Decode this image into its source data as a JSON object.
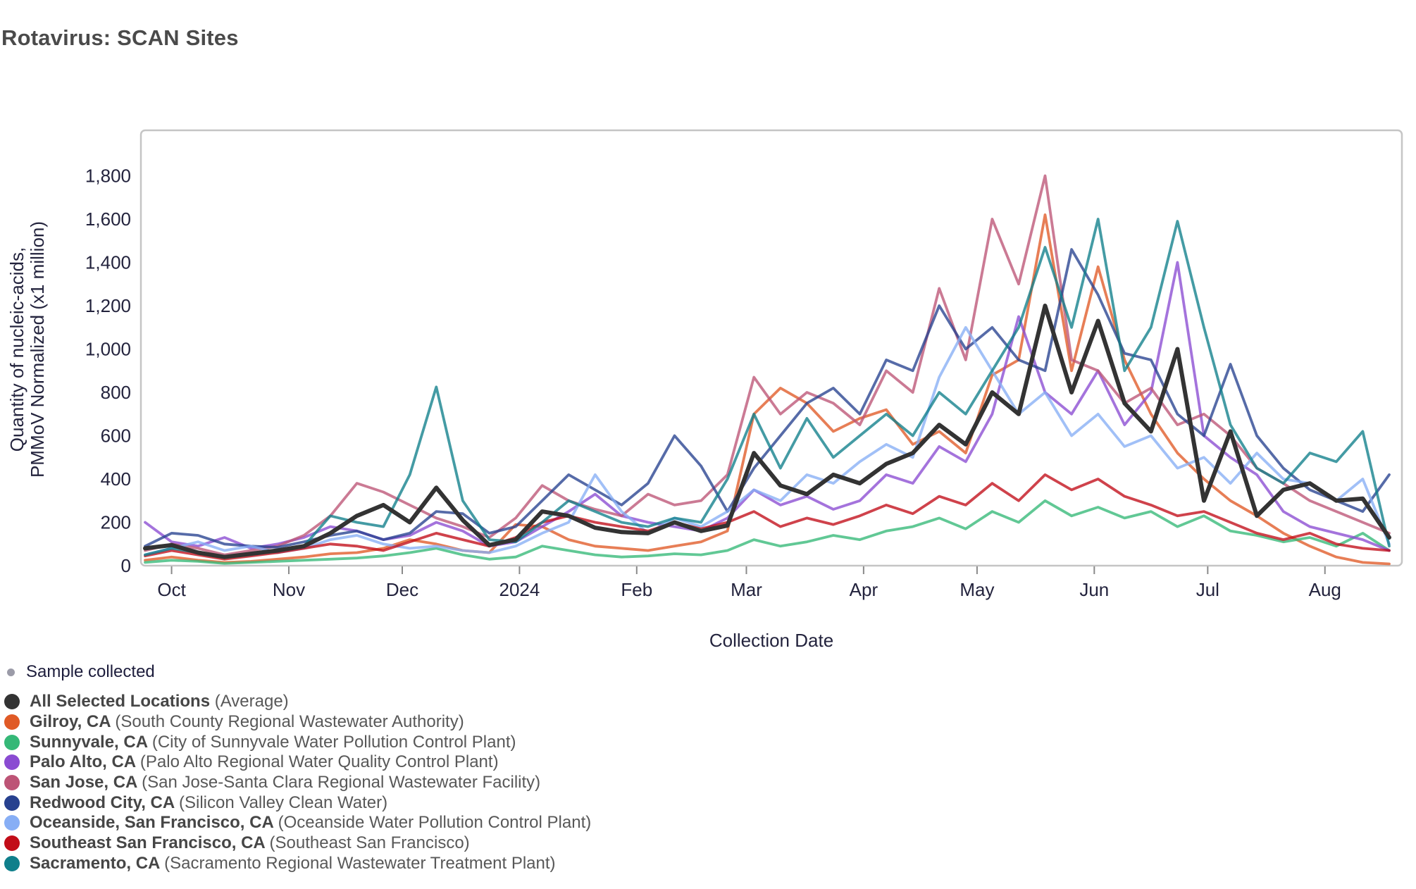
{
  "header": {
    "title": "Rotavirus: SCAN Sites"
  },
  "legend": {
    "sample_collected": "Sample collected",
    "sample_dot_color": "#9b9ba8"
  },
  "colors": {
    "title": "#4a4a4a",
    "axis_text": "#23233d",
    "frame": "#c5c5c5",
    "tick": "#8a8a8a"
  },
  "chart_data": {
    "type": "line",
    "title": "Rotavirus: SCAN Sites",
    "xlabel": "Collection Date",
    "ylabel_line1": "Quantity of nucleic-acids,",
    "ylabel_line2": "PMMoV Normalized (x1 million)",
    "ylim": [
      0,
      2010
    ],
    "grid": false,
    "legend_position": "bottom-left",
    "y_ticks": [
      0,
      200,
      400,
      600,
      800,
      1000,
      1200,
      1400,
      1600,
      1800
    ],
    "x_ticks": [
      {
        "label": "Oct",
        "day": 7
      },
      {
        "label": "Nov",
        "day": 38
      },
      {
        "label": "Dec",
        "day": 68
      },
      {
        "label": "2024",
        "day": 99
      },
      {
        "label": "Feb",
        "day": 130
      },
      {
        "label": "Mar",
        "day": 159
      },
      {
        "label": "Apr",
        "day": 190
      },
      {
        "label": "May",
        "day": 220
      },
      {
        "label": "Jun",
        "day": 251
      },
      {
        "label": "Jul",
        "day": 281
      },
      {
        "label": "Aug",
        "day": 312
      }
    ],
    "x_weekly_dates": [
      "Sep 24",
      "Oct 1",
      "Oct 8",
      "Oct 15",
      "Oct 22",
      "Oct 29",
      "Nov 5",
      "Nov 12",
      "Nov 19",
      "Nov 26",
      "Dec 3",
      "Dec 10",
      "Dec 17",
      "Dec 24",
      "Dec 31",
      "Jan 7",
      "Jan 14",
      "Jan 21",
      "Jan 28",
      "Feb 4",
      "Feb 11",
      "Feb 18",
      "Feb 25",
      "Mar 3",
      "Mar 10",
      "Mar 17",
      "Mar 24",
      "Mar 31",
      "Apr 7",
      "Apr 14",
      "Apr 21",
      "Apr 28",
      "May 5",
      "May 12",
      "May 19",
      "May 26",
      "Jun 2",
      "Jun 9",
      "Jun 16",
      "Jun 23",
      "Jun 30",
      "Jul 7",
      "Jul 14",
      "Jul 21",
      "Jul 28",
      "Aug 4",
      "Aug 11",
      "Aug 18"
    ],
    "series": [
      {
        "id": "average",
        "name": "All Selected Locations",
        "detail": "(Average)",
        "color": "#333333",
        "values": [
          80,
          95,
          60,
          40,
          55,
          70,
          90,
          150,
          230,
          280,
          200,
          360,
          210,
          95,
          120,
          250,
          230,
          175,
          155,
          150,
          200,
          160,
          185,
          520,
          370,
          330,
          420,
          380,
          470,
          520,
          650,
          560,
          800,
          700,
          1200,
          800,
          1130,
          750,
          620,
          1000,
          300,
          620,
          230,
          350,
          380,
          300,
          310,
          130
        ]
      },
      {
        "id": "gilroy",
        "name": "Gilroy, CA",
        "detail": "(South County Regional Wastewater Authority)",
        "color": "#e05a26",
        "values": [
          25,
          40,
          25,
          15,
          20,
          30,
          40,
          55,
          60,
          80,
          120,
          100,
          70,
          60,
          190,
          180,
          120,
          90,
          80,
          70,
          90,
          110,
          160,
          700,
          820,
          750,
          620,
          680,
          720,
          560,
          620,
          520,
          880,
          950,
          1620,
          900,
          1380,
          950,
          700,
          520,
          400,
          300,
          230,
          150,
          90,
          40,
          15,
          8
        ]
      },
      {
        "id": "sunnyvale",
        "name": "Sunnyvale, CA",
        "detail": "(City of Sunnyvale Water Pollution Control Plant)",
        "color": "#35b877",
        "values": [
          15,
          25,
          20,
          10,
          15,
          20,
          25,
          30,
          35,
          45,
          60,
          80,
          50,
          30,
          40,
          90,
          70,
          50,
          40,
          45,
          55,
          50,
          70,
          120,
          90,
          110,
          140,
          120,
          160,
          180,
          220,
          170,
          250,
          200,
          300,
          230,
          270,
          220,
          250,
          180,
          230,
          160,
          140,
          110,
          130,
          90,
          150,
          70
        ]
      },
      {
        "id": "palo_alto",
        "name": "Palo Alto, CA",
        "detail": "(Palo Alto Regional Water Quality Control Plant)",
        "color": "#8a4bd2",
        "values": [
          200,
          110,
          90,
          130,
          80,
          100,
          130,
          180,
          160,
          120,
          140,
          200,
          160,
          90,
          110,
          180,
          250,
          330,
          230,
          200,
          180,
          160,
          220,
          350,
          280,
          320,
          260,
          300,
          420,
          380,
          550,
          480,
          700,
          1150,
          800,
          700,
          900,
          650,
          800,
          1400,
          600,
          500,
          420,
          250,
          180,
          150,
          120,
          70
        ]
      },
      {
        "id": "san_jose",
        "name": "San Jose, CA",
        "detail": "(San Jose-Santa Clara Regional Wastewater Facility)",
        "color": "#bd5476",
        "values": [
          70,
          100,
          80,
          50,
          70,
          90,
          140,
          230,
          380,
          340,
          280,
          220,
          180,
          130,
          220,
          370,
          300,
          260,
          230,
          330,
          280,
          300,
          420,
          870,
          700,
          800,
          750,
          650,
          900,
          800,
          1280,
          950,
          1600,
          1300,
          1800,
          950,
          900,
          750,
          820,
          650,
          700,
          600,
          450,
          380,
          300,
          250,
          200,
          150
        ]
      },
      {
        "id": "redwood_city",
        "name": "Redwood City, CA",
        "detail": "(Silicon Valley Clean Water)",
        "color": "#27418f",
        "values": [
          90,
          150,
          140,
          100,
          90,
          85,
          110,
          140,
          160,
          120,
          150,
          250,
          240,
          150,
          180,
          300,
          420,
          350,
          280,
          380,
          600,
          460,
          250,
          450,
          600,
          750,
          820,
          700,
          950,
          900,
          1200,
          1000,
          1100,
          950,
          900,
          1460,
          1250,
          980,
          950,
          700,
          600,
          930,
          600,
          450,
          350,
          300,
          250,
          420
        ]
      },
      {
        "id": "oceanside",
        "name": "Oceanside, San Francisco, CA",
        "detail": "(Oceanside Water Pollution Control Plant)",
        "color": "#87aef5",
        "values": [
          50,
          80,
          110,
          70,
          90,
          60,
          80,
          120,
          140,
          100,
          80,
          90,
          70,
          60,
          90,
          150,
          200,
          420,
          250,
          150,
          220,
          180,
          250,
          350,
          300,
          420,
          380,
          480,
          560,
          500,
          870,
          1100,
          900,
          700,
          800,
          600,
          700,
          550,
          600,
          450,
          500,
          380,
          520,
          400,
          380,
          300,
          400,
          100
        ]
      },
      {
        "id": "southeast_sf",
        "name": "Southeast San Francisco, CA",
        "detail": "(Southeast San Francisco)",
        "color": "#c20d18",
        "values": [
          45,
          70,
          50,
          30,
          45,
          60,
          80,
          100,
          90,
          70,
          110,
          150,
          120,
          90,
          130,
          200,
          230,
          200,
          180,
          160,
          200,
          170,
          200,
          250,
          180,
          220,
          190,
          230,
          280,
          240,
          320,
          280,
          380,
          300,
          420,
          350,
          400,
          320,
          280,
          230,
          250,
          200,
          150,
          120,
          150,
          100,
          80,
          70
        ]
      },
      {
        "id": "sacramento",
        "name": "Sacramento, CA",
        "detail": "(Sacramento Regional Wastewater Treatment Plant)",
        "color": "#0f7f8b",
        "values": [
          50,
          80,
          60,
          40,
          55,
          70,
          90,
          230,
          200,
          180,
          420,
          825,
          300,
          120,
          110,
          200,
          300,
          250,
          200,
          180,
          220,
          200,
          400,
          700,
          450,
          680,
          500,
          600,
          700,
          600,
          800,
          700,
          900,
          1100,
          1470,
          1100,
          1600,
          900,
          1100,
          1590,
          1100,
          650,
          450,
          380,
          520,
          480,
          620,
          90
        ]
      }
    ]
  }
}
